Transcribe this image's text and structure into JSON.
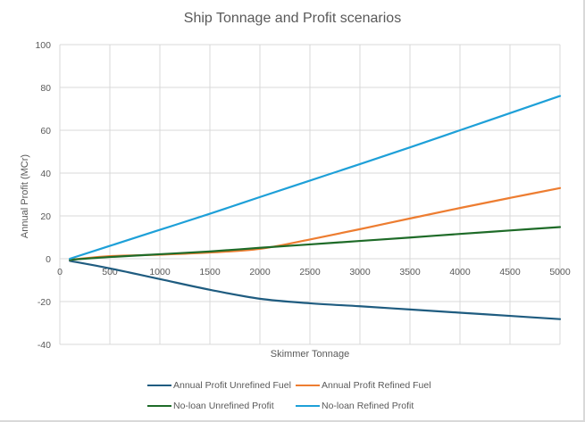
{
  "chart_data": {
    "type": "line",
    "title": "Ship Tonnage and Profit scenarios",
    "xlabel": "Skimmer Tonnage",
    "ylabel": "Annual Profit (MCr)",
    "xlim": [
      0,
      5000
    ],
    "ylim": [
      -40,
      100
    ],
    "xticks": [
      0,
      500,
      1000,
      1500,
      2000,
      2500,
      3000,
      3500,
      4000,
      4500,
      5000
    ],
    "yticks": [
      -40,
      -20,
      0,
      20,
      40,
      60,
      80,
      100
    ],
    "xtick_labels": [
      "0",
      "500",
      "1000",
      "1500",
      "2000",
      "2500",
      "3000",
      "3500",
      "4000",
      "4500",
      "5000"
    ],
    "ytick_labels": [
      "-40",
      "-20",
      "0",
      "20",
      "40",
      "60",
      "80",
      "100"
    ],
    "grid": true,
    "legend_position": "bottom",
    "x": [
      100,
      500,
      1000,
      1500,
      2000,
      2500,
      3000,
      3500,
      4000,
      4500,
      5000
    ],
    "series": [
      {
        "name": "Annual Profit Unrefined Fuel",
        "color": "#1f5c80",
        "values": [
          -1,
          -4.5,
          -9.5,
          -14.5,
          -18.7,
          -20.8,
          -22.2,
          -23.7,
          -25.2,
          -26.7,
          -28.2
        ]
      },
      {
        "name": "Annual Profit Refined Fuel",
        "color": "#ed7d31",
        "values": [
          -0.5,
          1.2,
          1.9,
          2.9,
          4.6,
          9,
          13.8,
          18.8,
          23.7,
          28.4,
          33
        ]
      },
      {
        "name": "No-loan Unrefined Profit",
        "color": "#1e6b28",
        "values": [
          -0.5,
          0.8,
          2.1,
          3.4,
          5.1,
          6.7,
          8.3,
          9.9,
          11.6,
          13.2,
          14.8
        ]
      },
      {
        "name": "No-loan Refined Profit",
        "color": "#1ea0d8",
        "values": [
          0,
          6,
          13.5,
          21,
          28.8,
          36.5,
          44.2,
          52,
          60,
          68,
          76
        ]
      }
    ]
  }
}
